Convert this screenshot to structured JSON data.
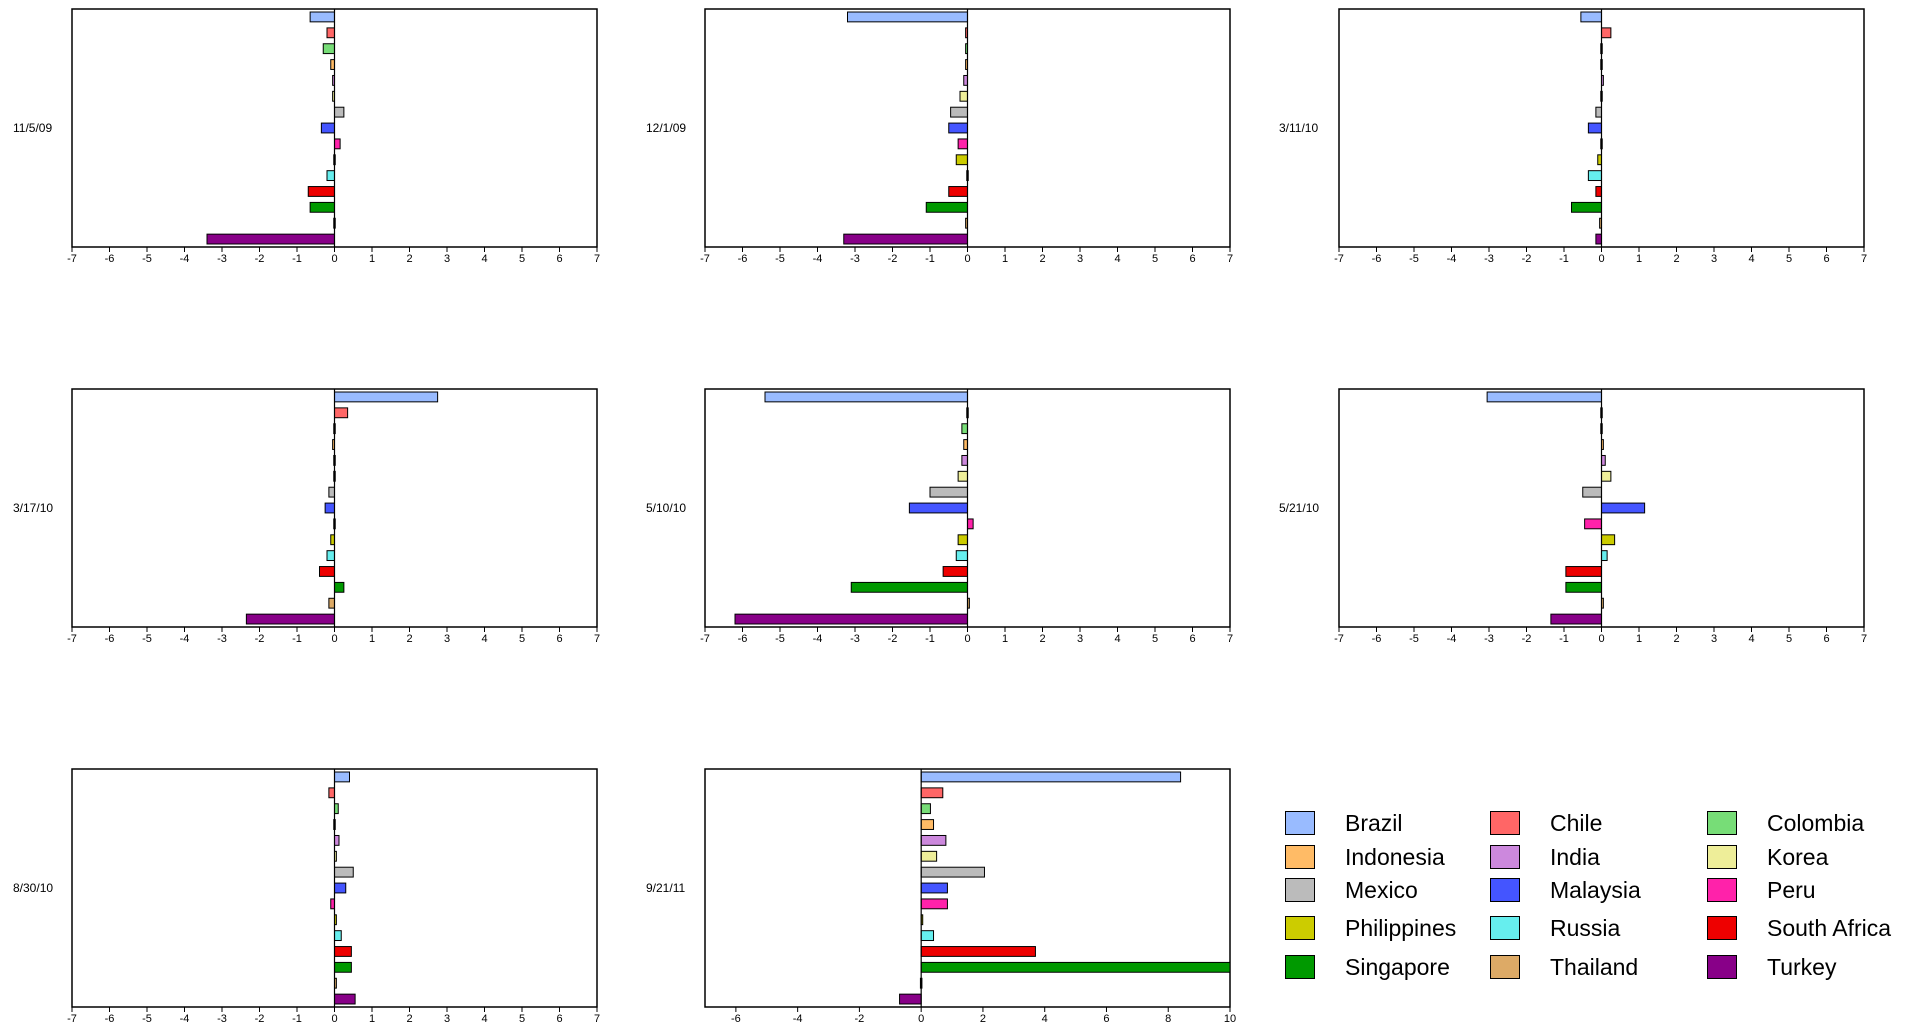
{
  "chart_data": {
    "type": "bar",
    "orientation": "horizontal",
    "x_axis_range_default": [
      -7,
      7
    ],
    "x_ticks_default": [
      -7,
      -6,
      -5,
      -4,
      -3,
      -2,
      -1,
      0,
      1,
      2,
      3,
      4,
      5,
      6,
      7
    ],
    "grid": false,
    "legend_placement": "bottom-right",
    "series_colors": {
      "Brazil": "#99bbff",
      "Chile": "#ff6666",
      "Colombia": "#77dd77",
      "Indonesia": "#ffbb66",
      "India": "#cc88dd",
      "Korea": "#eeee99",
      "Mexico": "#bbbbbb",
      "Malaysia": "#4455ff",
      "Peru": "#ff22aa",
      "Philippines": "#cccc00",
      "Russia": "#66eeee",
      "South Africa": "#ee0000",
      "Singapore": "#009900",
      "Thailand": "#ddaa66",
      "Turkey": "#880088"
    },
    "categories": [
      "Brazil",
      "Chile",
      "Colombia",
      "Indonesia",
      "India",
      "Korea",
      "Mexico",
      "Malaysia",
      "Peru",
      "Philippines",
      "Russia",
      "South Africa",
      "Singapore",
      "Thailand",
      "Turkey"
    ],
    "panels": [
      {
        "label": "11/5/09",
        "values": [
          -0.65,
          -0.2,
          -0.3,
          -0.1,
          -0.05,
          -0.05,
          0.25,
          -0.35,
          0.15,
          0.02,
          -0.2,
          -0.7,
          -0.65,
          -0.02,
          -3.4
        ]
      },
      {
        "label": "12/1/09",
        "values": [
          -3.2,
          -0.05,
          -0.05,
          -0.05,
          -0.1,
          -0.2,
          -0.45,
          -0.5,
          -0.25,
          -0.3,
          0.01,
          -0.5,
          -1.1,
          -0.05,
          -3.3
        ]
      },
      {
        "label": "3/11/10",
        "values": [
          -0.55,
          0.25,
          0.0,
          -0.03,
          0.05,
          -0.01,
          -0.15,
          -0.35,
          -0.01,
          -0.1,
          -0.35,
          -0.15,
          -0.8,
          -0.05,
          -0.15
        ]
      },
      {
        "label": "3/17/10",
        "values": [
          2.75,
          0.35,
          0.0,
          -0.05,
          0.0,
          0.0,
          -0.15,
          -0.25,
          0.0,
          -0.1,
          -0.2,
          -0.4,
          0.25,
          -0.15,
          -2.35
        ]
      },
      {
        "label": "5/10/10",
        "values": [
          -5.4,
          0.0,
          -0.15,
          -0.1,
          -0.15,
          -0.25,
          -1.0,
          -1.55,
          0.15,
          -0.25,
          -0.3,
          -0.65,
          -3.1,
          0.05,
          -6.2
        ]
      },
      {
        "label": "5/21/10",
        "values": [
          -3.05,
          0.0,
          0.0,
          0.05,
          0.1,
          0.25,
          -0.5,
          1.15,
          -0.45,
          0.35,
          0.15,
          -0.95,
          -0.95,
          0.05,
          -1.35
        ]
      },
      {
        "label": "8/30/10",
        "values": [
          0.4,
          -0.15,
          0.1,
          0.03,
          0.12,
          0.05,
          0.5,
          0.3,
          -0.1,
          0.05,
          0.18,
          0.45,
          0.45,
          0.05,
          0.55
        ]
      },
      {
        "label": "9/21/11",
        "x_axis_range": [
          -7,
          10
        ],
        "x_ticks": [
          -6,
          -4,
          -2,
          0,
          2,
          4,
          6,
          8,
          10
        ],
        "values": [
          8.4,
          0.7,
          0.3,
          0.4,
          0.8,
          0.5,
          2.05,
          0.85,
          0.85,
          0.05,
          0.4,
          3.7,
          10.2,
          0.0,
          -0.7
        ]
      }
    ]
  },
  "legend": {
    "items": [
      {
        "label": "Brazil",
        "color": "#99bbff"
      },
      {
        "label": "Chile",
        "color": "#ff6666"
      },
      {
        "label": "Colombia",
        "color": "#77dd77"
      },
      {
        "label": "Indonesia",
        "color": "#ffbb66"
      },
      {
        "label": "India",
        "color": "#cc88dd"
      },
      {
        "label": "Korea",
        "color": "#eeee99"
      },
      {
        "label": "Mexico",
        "color": "#bbbbbb"
      },
      {
        "label": "Malaysia",
        "color": "#4455ff"
      },
      {
        "label": "Peru",
        "color": "#ff22aa"
      },
      {
        "label": "Philippines",
        "color": "#cccc00"
      },
      {
        "label": "Russia",
        "color": "#66eeee"
      },
      {
        "label": "South Africa",
        "color": "#ee0000"
      },
      {
        "label": "Singapore",
        "color": "#009900"
      },
      {
        "label": "Thailand",
        "color": "#ddaa66"
      },
      {
        "label": "Turkey",
        "color": "#880088"
      }
    ]
  }
}
